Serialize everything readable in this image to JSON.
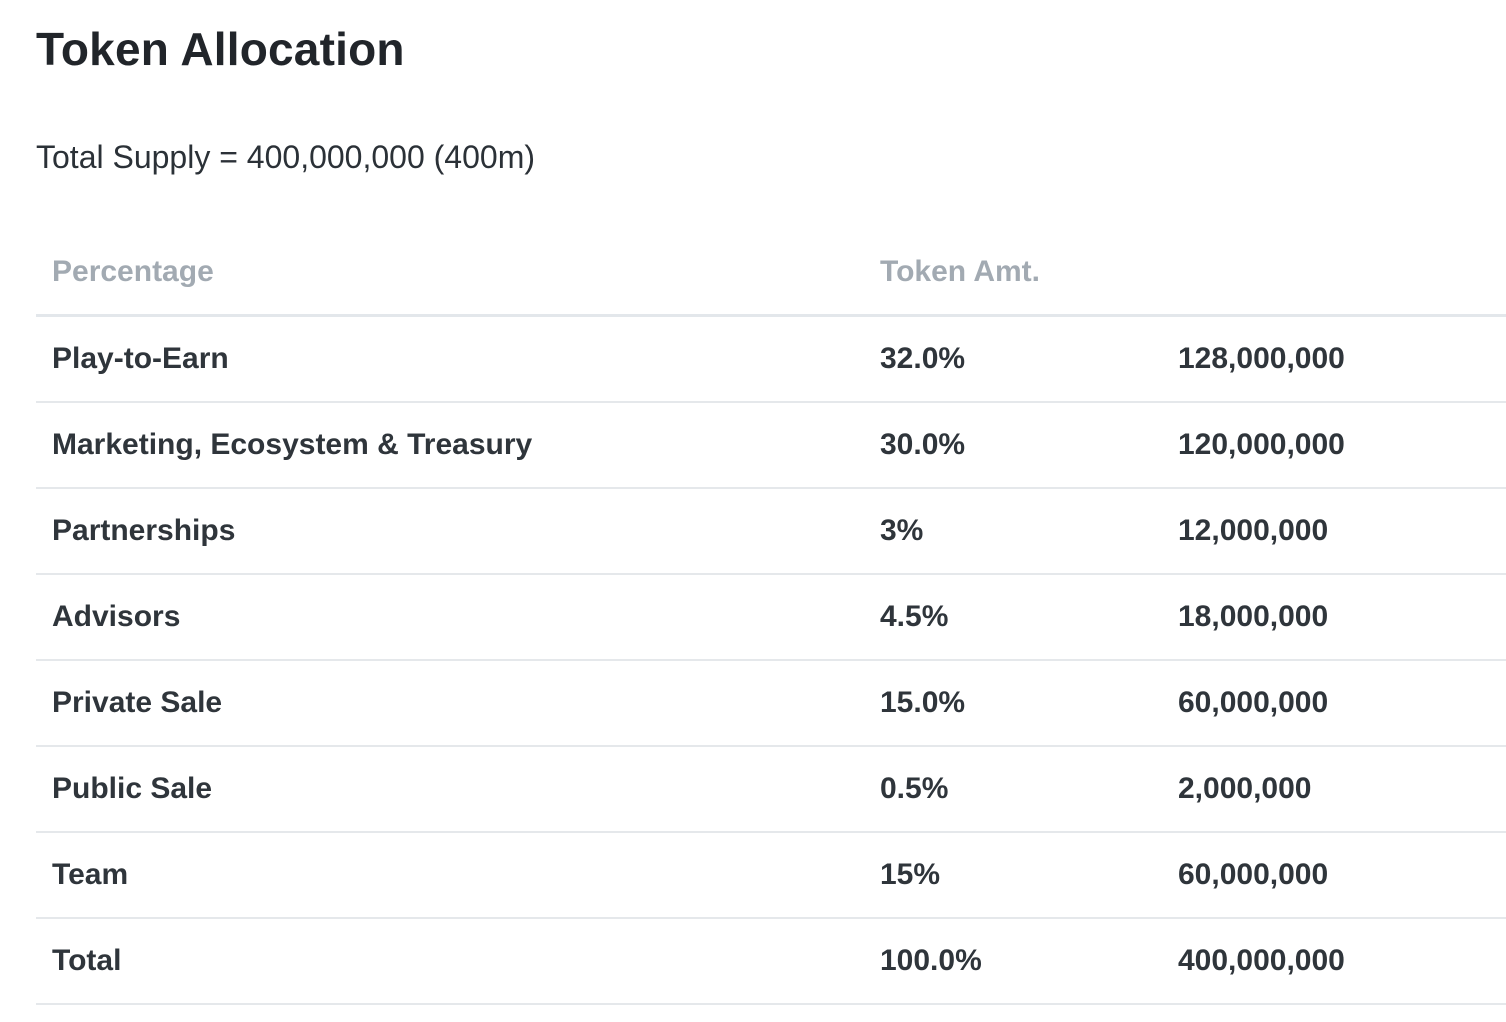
{
  "title": "Token Allocation",
  "supply_text": "Total Supply = 400,000,000 (400m)",
  "table": {
    "headers": [
      "Percentage",
      "Token Amt.",
      ""
    ],
    "rows": [
      {
        "label": "Play-to-Earn",
        "percentage": "32.0%",
        "amount": "128,000,000"
      },
      {
        "label": "Marketing, Ecosystem & Treasury",
        "percentage": "30.0%",
        "amount": "120,000,000"
      },
      {
        "label": "Partnerships",
        "percentage": "3%",
        "amount": "12,000,000"
      },
      {
        "label": "Advisors",
        "percentage": "4.5%",
        "amount": "18,000,000"
      },
      {
        "label": "Private Sale",
        "percentage": "15.0%",
        "amount": "60,000,000"
      },
      {
        "label": "Public Sale",
        "percentage": "0.5%",
        "amount": "2,000,000"
      },
      {
        "label": "Team",
        "percentage": "15%",
        "amount": "60,000,000"
      },
      {
        "label": "Total",
        "percentage": "100.0%",
        "amount": "400,000,000"
      }
    ]
  }
}
